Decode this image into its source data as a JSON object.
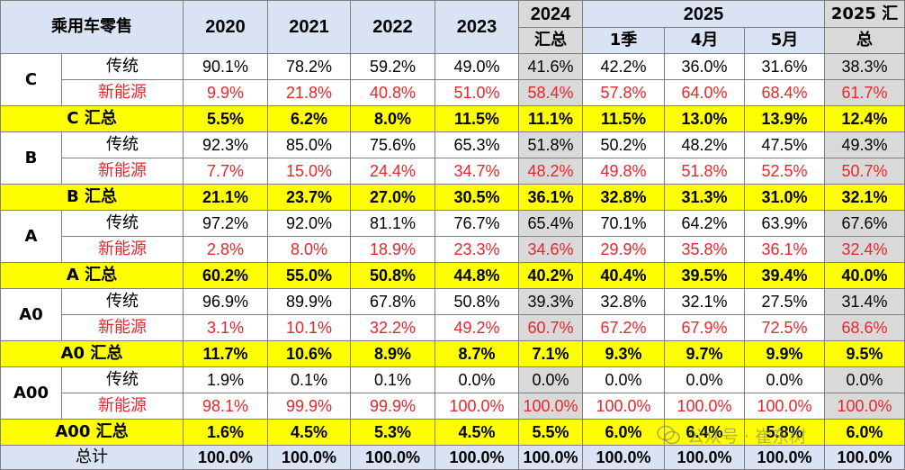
{
  "header": {
    "label": "乘用车零售",
    "years": [
      "2020",
      "2021",
      "2022",
      "2023"
    ],
    "y2024": "2024",
    "y2024_sub": "汇总",
    "y2025": "2025",
    "y2025_cols": [
      "1季",
      "4月",
      "5月"
    ],
    "y2025_total": "2025 汇",
    "y2025_total_sub": "总"
  },
  "labels": {
    "traditional": "传统",
    "nev": "新能源",
    "total": "总计"
  },
  "segments": [
    {
      "name": "C",
      "traditional": [
        "90.1%",
        "78.2%",
        "59.2%",
        "49.0%",
        "41.6%",
        "42.2%",
        "36.0%",
        "31.6%",
        "38.3%"
      ],
      "nev": [
        "9.9%",
        "21.8%",
        "40.8%",
        "51.0%",
        "58.4%",
        "57.8%",
        "64.0%",
        "68.4%",
        "61.7%"
      ],
      "summary_label": "C 汇总",
      "summary": [
        "5.5%",
        "6.2%",
        "8.0%",
        "11.5%",
        "11.1%",
        "11.5%",
        "13.0%",
        "13.9%",
        "12.4%"
      ]
    },
    {
      "name": "B",
      "traditional": [
        "92.3%",
        "85.0%",
        "75.6%",
        "65.3%",
        "51.8%",
        "50.2%",
        "48.2%",
        "47.5%",
        "49.3%"
      ],
      "nev": [
        "7.7%",
        "15.0%",
        "24.4%",
        "34.7%",
        "48.2%",
        "49.8%",
        "51.8%",
        "52.5%",
        "50.7%"
      ],
      "summary_label": "B 汇总",
      "summary": [
        "21.1%",
        "23.7%",
        "27.0%",
        "30.5%",
        "36.1%",
        "32.8%",
        "31.3%",
        "31.0%",
        "32.1%"
      ]
    },
    {
      "name": "A",
      "traditional": [
        "97.2%",
        "92.0%",
        "81.1%",
        "76.7%",
        "65.4%",
        "70.1%",
        "64.2%",
        "63.9%",
        "67.6%"
      ],
      "nev": [
        "2.8%",
        "8.0%",
        "18.9%",
        "23.3%",
        "34.6%",
        "29.9%",
        "35.8%",
        "36.1%",
        "32.4%"
      ],
      "summary_label": "A 汇总",
      "summary": [
        "60.2%",
        "55.0%",
        "50.8%",
        "44.8%",
        "40.2%",
        "40.4%",
        "39.5%",
        "39.4%",
        "40.0%"
      ]
    },
    {
      "name": "A0",
      "traditional": [
        "96.9%",
        "89.9%",
        "67.8%",
        "50.8%",
        "39.3%",
        "32.8%",
        "32.1%",
        "27.5%",
        "31.4%"
      ],
      "nev": [
        "3.1%",
        "10.1%",
        "32.2%",
        "49.2%",
        "60.7%",
        "67.2%",
        "67.9%",
        "72.5%",
        "68.6%"
      ],
      "summary_label": "A0 汇总",
      "summary": [
        "11.7%",
        "10.6%",
        "8.9%",
        "8.7%",
        "7.1%",
        "9.3%",
        "9.7%",
        "9.9%",
        "9.5%"
      ]
    },
    {
      "name": "A00",
      "traditional": [
        "1.9%",
        "0.1%",
        "0.1%",
        "0.0%",
        "0.0%",
        "0.0%",
        "0.0%",
        "0.0%",
        "0.0%"
      ],
      "nev": [
        "98.1%",
        "99.9%",
        "99.9%",
        "100.0%",
        "100.0%",
        "100.0%",
        "100.0%",
        "100.0%",
        "100.0%"
      ],
      "summary_label": "A00 汇总",
      "summary": [
        "1.6%",
        "4.5%",
        "5.3%",
        "4.5%",
        "5.5%",
        "6.0%",
        "6.4%",
        "5.8%",
        "6.0%"
      ]
    }
  ],
  "total": [
    "100.0%",
    "100.0%",
    "100.0%",
    "100.0%",
    "100.0%",
    "100.0%",
    "100.0%",
    "100.0%",
    "100.0%"
  ],
  "watermark": {
    "text": "公众号 · 崔东树",
    "icon": "wechat-icon"
  },
  "colors": {
    "header_bg": "#dae3f3",
    "summary_bg": "#ffff00",
    "highlight_bg": "#d9d9d9",
    "nev_text": "#e8262b"
  }
}
